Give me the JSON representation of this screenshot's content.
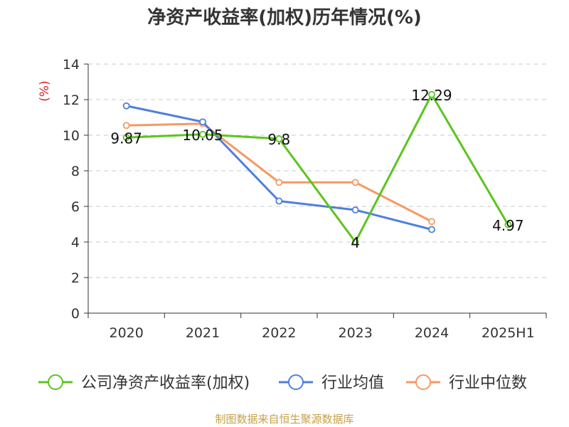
{
  "title": "净资产收益率(加权)历年情况(%)",
  "source": "制图数据来自恒生聚源数据库",
  "chart_data": {
    "type": "line",
    "title": "净资产收益率(加权)历年情况(%)",
    "ylabel": "(%)",
    "ylim": [
      0,
      14
    ],
    "yticks": [
      0,
      2,
      4,
      6,
      8,
      10,
      12,
      14
    ],
    "categories": [
      "2020",
      "2021",
      "2022",
      "2023",
      "2024",
      "2025H1"
    ],
    "grid": true,
    "legend_position": "bottom",
    "series": [
      {
        "name": "公司净资产收益率(加权)",
        "color": "#5cc41e",
        "values": [
          9.87,
          10.05,
          9.8,
          4,
          12.29,
          4.97
        ],
        "labels": [
          "9.87",
          "10.05",
          "9.8",
          "4",
          "12.29",
          "4.97"
        ]
      },
      {
        "name": "行业均值",
        "color": "#4f7fdc",
        "values": [
          11.65,
          10.75,
          6.3,
          5.8,
          4.7,
          null
        ]
      },
      {
        "name": "行业中位数",
        "color": "#f59a64",
        "values": [
          10.55,
          10.65,
          7.35,
          7.35,
          5.15,
          null
        ]
      }
    ]
  }
}
